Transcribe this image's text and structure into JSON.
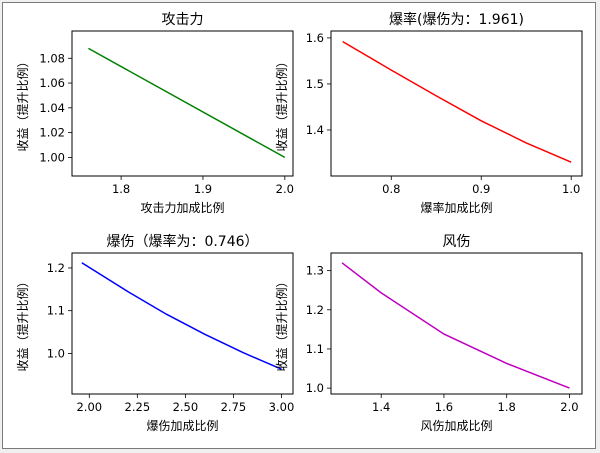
{
  "chart_data": [
    {
      "type": "line",
      "title": "攻击力",
      "xlabel": "攻击力加成比例",
      "ylabel": "收益（提升比例）",
      "color": "#008000",
      "xlim": [
        1.74,
        2.01
      ],
      "ylim": [
        0.985,
        1.102
      ],
      "xticks": [
        "1.8",
        "1.9",
        "2.0"
      ],
      "yticks": [
        "1.00",
        "1.02",
        "1.04",
        "1.06",
        "1.08"
      ],
      "series": [
        {
          "x": [
            1.76,
            2.0
          ],
          "y": [
            1.088,
            1.0
          ]
        }
      ]
    },
    {
      "type": "line",
      "title": "爆率(爆伤为：1.961)",
      "xlabel": "爆率加成比例",
      "ylabel": "收益（提升比例）",
      "color": "#ff0000",
      "xlim": [
        0.733,
        1.012
      ],
      "ylim": [
        1.3,
        1.615
      ],
      "xticks": [
        "0.8",
        "0.9",
        "1.0"
      ],
      "yticks": [
        "1.4",
        "1.5",
        "1.6"
      ],
      "series": [
        {
          "x": [
            0.746,
            0.8,
            0.85,
            0.9,
            0.95,
            1.0
          ],
          "y": [
            1.592,
            1.53,
            1.474,
            1.42,
            1.372,
            1.33
          ]
        }
      ]
    },
    {
      "type": "line",
      "title": "爆伤（爆率为：0.746）",
      "xlabel": "爆伤加成比例",
      "ylabel": "收益（提升比例）",
      "color": "#0000ff",
      "xlim": [
        1.91,
        3.06
      ],
      "ylim": [
        0.905,
        1.235
      ],
      "xticks": [
        "2.00",
        "2.25",
        "2.50",
        "2.75",
        "3.00"
      ],
      "yticks": [
        "1.0",
        "1.1",
        "1.2"
      ],
      "series": [
        {
          "x": [
            1.961,
            2.2,
            2.4,
            2.6,
            2.8,
            3.0
          ],
          "y": [
            1.212,
            1.145,
            1.092,
            1.045,
            1.002,
            0.963
          ]
        }
      ]
    },
    {
      "type": "line",
      "title": "风伤",
      "xlabel": "风伤加成比例",
      "ylabel": "收益（提升比例）",
      "color": "#bf00bf",
      "xlim": [
        1.24,
        2.04
      ],
      "ylim": [
        0.985,
        1.345
      ],
      "xticks": [
        "1.4",
        "1.6",
        "1.8",
        "2.0"
      ],
      "yticks": [
        "1.0",
        "1.1",
        "1.2",
        "1.3"
      ],
      "series": [
        {
          "x": [
            1.275,
            1.4,
            1.6,
            1.8,
            2.0
          ],
          "y": [
            1.32,
            1.243,
            1.138,
            1.063,
            1.0
          ]
        }
      ]
    }
  ]
}
